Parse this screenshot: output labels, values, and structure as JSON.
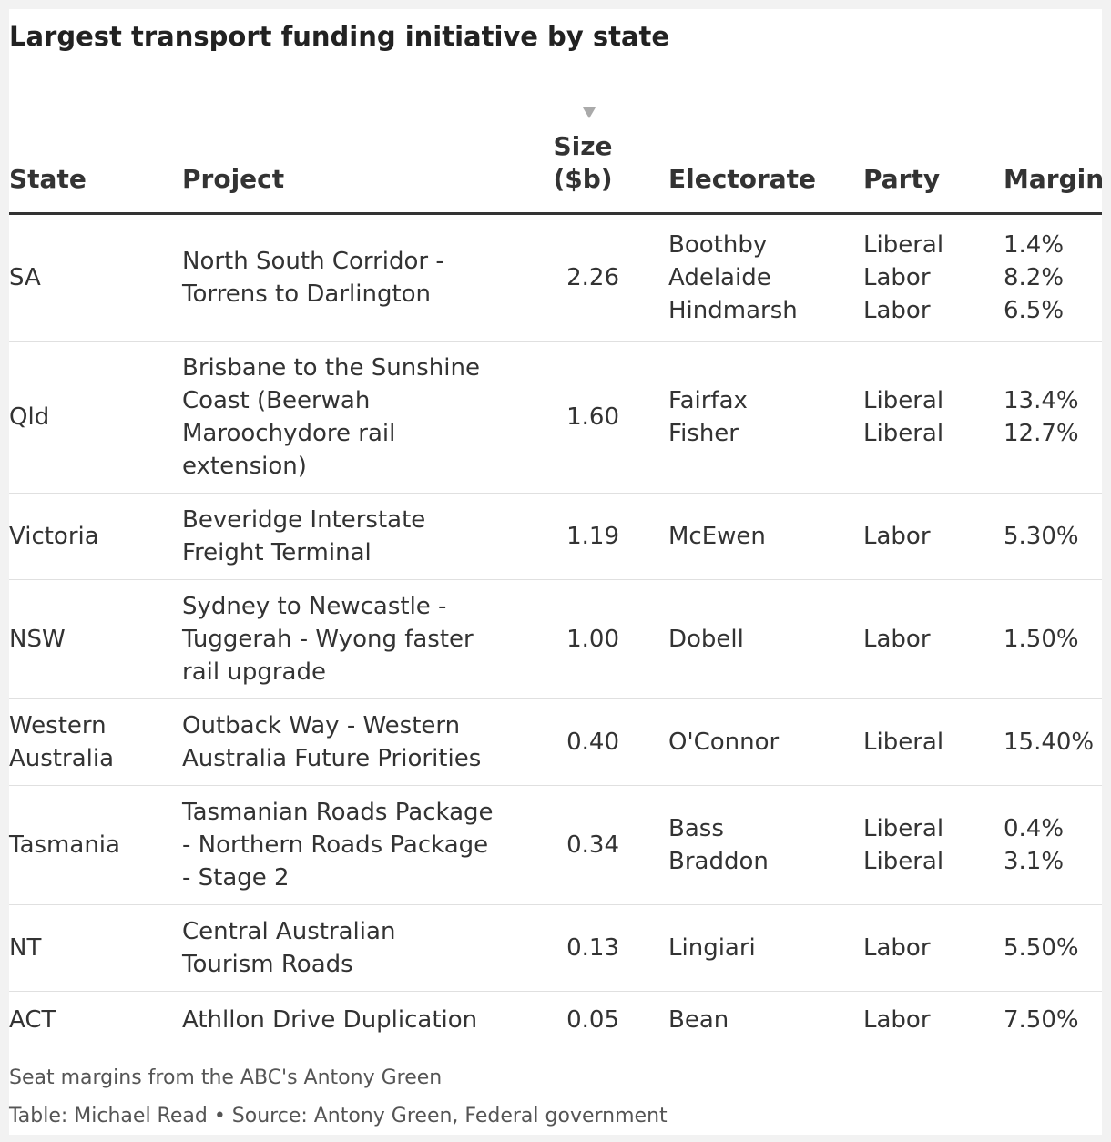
{
  "title": "Largest transport funding initiative by state",
  "headers": {
    "state": "State",
    "project": "Project",
    "size_line1": "Size",
    "size_line2": "($b)",
    "electorate": "Electorate",
    "party": "Party",
    "margin": "Margin"
  },
  "sort_icon": "sort-descending-triangle",
  "rows": [
    {
      "state": [
        "SA"
      ],
      "project": [
        "North South Corridor -",
        "Torrens to Darlington"
      ],
      "size": "2.26",
      "electorates": [
        "Boothby",
        "Adelaide",
        "Hindmarsh"
      ],
      "parties": [
        "Liberal",
        "Labor",
        "Labor"
      ],
      "margins": [
        "1.4%",
        "8.2%",
        "6.5%"
      ]
    },
    {
      "state": [
        "Qld"
      ],
      "project": [
        "Brisbane to the Sunshine",
        "Coast (Beerwah",
        "Maroochydore rail",
        "extension)"
      ],
      "size": "1.60",
      "electorates": [
        "Fairfax",
        "Fisher"
      ],
      "parties": [
        "Liberal",
        "Liberal"
      ],
      "margins": [
        "13.4%",
        "12.7%"
      ]
    },
    {
      "state": [
        "Victoria"
      ],
      "project": [
        "Beveridge Interstate",
        "Freight Terminal"
      ],
      "size": "1.19",
      "electorates": [
        "McEwen"
      ],
      "parties": [
        "Labor"
      ],
      "margins": [
        "5.30%"
      ]
    },
    {
      "state": [
        "NSW"
      ],
      "project": [
        "Sydney to Newcastle -",
        "Tuggerah - Wyong faster",
        "rail upgrade"
      ],
      "size": "1.00",
      "electorates": [
        "Dobell"
      ],
      "parties": [
        "Labor"
      ],
      "margins": [
        "1.50%"
      ]
    },
    {
      "state": [
        "Western",
        "Australia"
      ],
      "project": [
        "Outback Way - Western",
        "Australia Future Priorities"
      ],
      "size": "0.40",
      "electorates": [
        "O'Connor"
      ],
      "parties": [
        "Liberal"
      ],
      "margins": [
        "15.40%"
      ]
    },
    {
      "state": [
        "Tasmania"
      ],
      "project": [
        "Tasmanian Roads Package",
        "- Northern Roads Package",
        "- Stage 2"
      ],
      "size": "0.34",
      "electorates": [
        "Bass",
        "Braddon"
      ],
      "parties": [
        "Liberal",
        "Liberal"
      ],
      "margins": [
        "0.4%",
        "3.1%"
      ]
    },
    {
      "state": [
        "NT"
      ],
      "project": [
        "Central Australian",
        "Tourism Roads"
      ],
      "size": "0.13",
      "electorates": [
        "Lingiari"
      ],
      "parties": [
        "Labor"
      ],
      "margins": [
        "5.50%"
      ]
    },
    {
      "state": [
        "ACT"
      ],
      "project": [
        "Athllon Drive Duplication"
      ],
      "size": "0.05",
      "electorates": [
        "Bean"
      ],
      "parties": [
        "Labor"
      ],
      "margins": [
        "7.50%"
      ]
    }
  ],
  "notes": "Seat margins from the ABC's Antony Green",
  "source": "Table: Michael Read • Source: Antony Green, Federal government"
}
